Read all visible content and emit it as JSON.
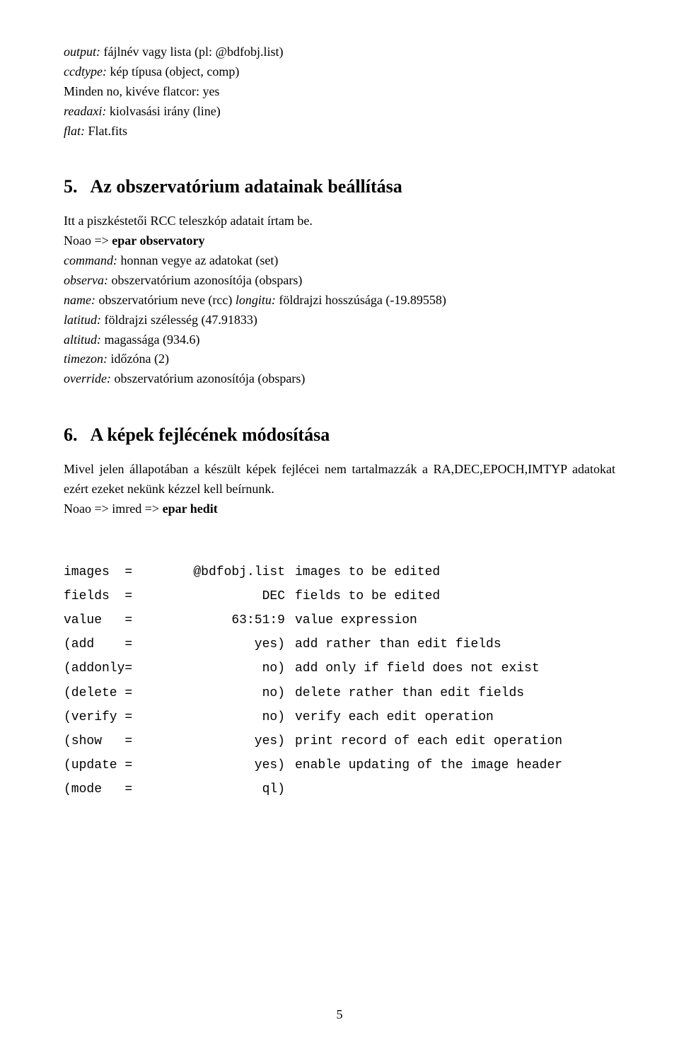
{
  "top": {
    "l1_em": "output:",
    "l1_rest": " fájlnév vagy lista (pl: @bdfobj.list)",
    "l2_em": "ccdtype:",
    "l2_rest": " kép típusa (object, comp)",
    "l3": "Minden no, kivéve flatcor: yes",
    "l4_em": "readaxi:",
    "l4_rest": " kiolvasási irány (line)",
    "l5_em": "flat:",
    "l5_rest": " Flat.fits"
  },
  "sec5": {
    "num": "5.",
    "title": "Az obszervatórium adatainak beállítása",
    "intro": "Itt a piszkéstetői RCC teleszkóp adatait írtam be.",
    "cmd_prefix": "Noao => ",
    "cmd_bold": "epar observatory",
    "l1_em": "command:",
    "l1_rest": " honnan vegye az adatokat (set)",
    "l2_em": "observa:",
    "l2_rest": " obszervatórium azonosítója (obspars)",
    "l3_em1": "name:",
    "l3_mid": " obszervatórium neve (rcc) ",
    "l3_em2": "longitu:",
    "l3_rest": " földrajzi hosszúsága (-19.89558)",
    "l4_em": "latitud:",
    "l4_rest": " földrajzi szélesség (47.91833)",
    "l5_em": "altitud:",
    "l5_rest": " magassága (934.6)",
    "l6_em": "timezon:",
    "l6_rest": " időzóna (2)",
    "l7_em": "override:",
    "l7_rest": " obszervatórium azonosítója (obspars)"
  },
  "sec6": {
    "num": "6.",
    "title": "A képek fejlécének módosítása",
    "para1": "Mivel jelen állapotában a készült képek fejlécei nem tartalmazzák a RA,DEC,EPOCH,IMTYP adatokat ezért ezeket nekünk kézzel kell beírnunk.",
    "cmd_prefix": "Noao => imred => ",
    "cmd_bold": "epar hedit",
    "rows": [
      {
        "c1": "images  =",
        "c2": "@bdfobj.list",
        "c3": "images to be edited"
      },
      {
        "c1": "fields  =",
        "c2": "DEC",
        "c3": "fields to be edited"
      },
      {
        "c1": "value   =",
        "c2": "63:51:9",
        "c3": "value expression"
      },
      {
        "c1": "(add    =",
        "c2": "yes)",
        "c3": "add rather than edit fields"
      },
      {
        "c1": "(addonly=",
        "c2": "no)",
        "c3": "add only if field does not exist"
      },
      {
        "c1": "(delete =",
        "c2": "no)",
        "c3": "delete rather than edit fields"
      },
      {
        "c1": "(verify =",
        "c2": "no)",
        "c3": "verify each edit operation"
      },
      {
        "c1": "(show   =",
        "c2": "yes)",
        "c3": "print record of each edit operation"
      },
      {
        "c1": "(update =",
        "c2": "yes)",
        "c3": "enable updating of the image header"
      },
      {
        "c1": "(mode   =",
        "c2": "ql)",
        "c3": ""
      }
    ]
  },
  "page_number": "5"
}
